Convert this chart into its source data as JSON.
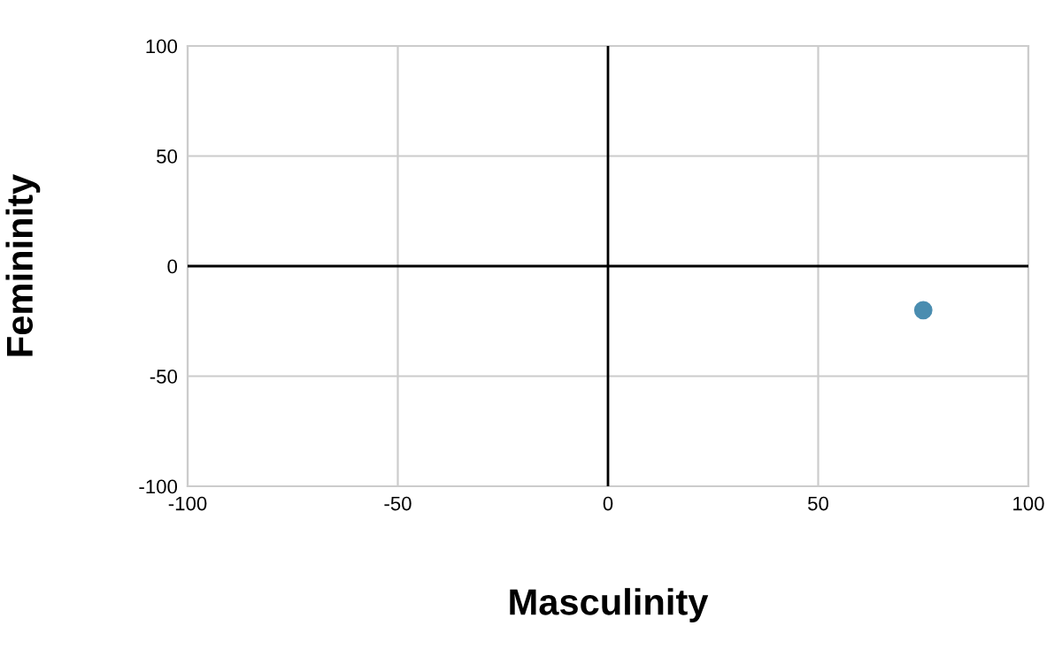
{
  "chart_data": {
    "type": "scatter",
    "xlabel": "Masculinity",
    "ylabel": "Femininity",
    "x": [
      75
    ],
    "series": [
      {
        "color": "#4a8db0",
        "values": [
          -20
        ]
      }
    ],
    "xlim": [
      -100,
      100
    ],
    "ylim": [
      -100,
      100
    ],
    "xticks": [
      -100,
      -50,
      0,
      50,
      100
    ],
    "yticks": [
      -100,
      -50,
      0,
      50,
      100
    ],
    "grid": true,
    "marker": "circle"
  }
}
